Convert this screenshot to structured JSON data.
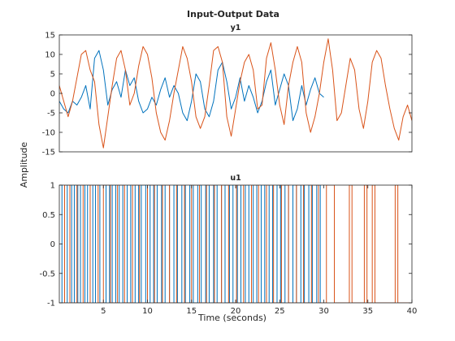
{
  "figure": {
    "title": "Input-Output Data",
    "ylabel": "Amplitude",
    "xlabel": "Time (seconds)"
  },
  "colors": {
    "series1": "#0072BD",
    "series2": "#D95319",
    "axes": "#262626",
    "background": "#ffffff"
  },
  "chart_data": [
    {
      "type": "line",
      "title": "y1",
      "xlim": [
        0,
        40
      ],
      "ylim": [
        -15,
        15
      ],
      "yticks": [
        -15,
        -10,
        -5,
        0,
        5,
        10,
        15
      ],
      "xticks": [],
      "grid": false,
      "series": [
        {
          "color": "#0072BD",
          "x": [
            0,
            0.5,
            1,
            1.5,
            2,
            2.5,
            3,
            3.5,
            4,
            4.5,
            5,
            5.5,
            6,
            6.5,
            7,
            7.5,
            8,
            8.5,
            9,
            9.5,
            10,
            10.5,
            11,
            11.5,
            12,
            12.5,
            13,
            13.5,
            14,
            14.5,
            15,
            15.5,
            16,
            16.5,
            17,
            17.5,
            18,
            18.5,
            19,
            19.5,
            20,
            20.5,
            21,
            21.5,
            22,
            22.5,
            23,
            23.5,
            24,
            24.5,
            25,
            25.5,
            26,
            26.5,
            27,
            27.5,
            28,
            28.5,
            29,
            29.5,
            30
          ],
          "y": [
            -2,
            -4,
            -5,
            -2,
            -3,
            -1,
            2,
            -4,
            9,
            11,
            6,
            -3,
            1,
            3,
            -1,
            6,
            2,
            4,
            -2,
            -5,
            -4,
            -1,
            -3,
            1,
            4,
            -1,
            2,
            0,
            -5,
            -7,
            -2,
            5,
            3,
            -4,
            -6,
            -2,
            6,
            8,
            3,
            -4,
            -1,
            4,
            -2,
            2,
            -1,
            -5,
            -2,
            3,
            6,
            -3,
            1,
            5,
            2,
            -7,
            -4,
            2,
            -3,
            1,
            4,
            0,
            -1
          ]
        },
        {
          "color": "#D95319",
          "x": [
            0,
            0.5,
            1,
            1.5,
            2,
            2.5,
            3,
            3.5,
            4,
            4.5,
            5,
            5.5,
            6,
            6.5,
            7,
            7.5,
            8,
            8.5,
            9,
            9.5,
            10,
            10.5,
            11,
            11.5,
            12,
            12.5,
            13,
            13.5,
            14,
            14.5,
            15,
            15.5,
            16,
            16.5,
            17,
            17.5,
            18,
            18.5,
            19,
            19.5,
            20,
            20.5,
            21,
            21.5,
            22,
            22.5,
            23,
            23.5,
            24,
            24.5,
            25,
            25.5,
            26,
            26.5,
            27,
            27.5,
            28,
            28.5,
            29,
            29.5,
            30,
            30.5,
            31,
            31.5,
            32,
            32.5,
            33,
            33.5,
            34,
            34.5,
            35,
            35.5,
            36,
            36.5,
            37,
            37.5,
            38,
            38.5,
            39,
            39.5,
            40
          ],
          "y": [
            2,
            -2,
            -6,
            -2,
            4,
            10,
            11,
            6,
            3,
            -8,
            -14,
            -6,
            2,
            9,
            11,
            6,
            -3,
            0,
            7,
            12,
            10,
            4,
            -5,
            -10,
            -12,
            -7,
            0,
            6,
            12,
            9,
            3,
            -6,
            -9,
            -6,
            2,
            11,
            12,
            8,
            -6,
            -11,
            -4,
            3,
            8,
            10,
            6,
            -4,
            -3,
            9,
            13,
            6,
            -3,
            -8,
            2,
            8,
            12,
            8,
            -5,
            -10,
            -6,
            0,
            8,
            14,
            6,
            -7,
            -5,
            2,
            9,
            6,
            -4,
            -9,
            -2,
            8,
            11,
            9,
            2,
            -4,
            -9,
            -12,
            -6,
            -3,
            -7
          ]
        }
      ]
    },
    {
      "type": "line",
      "title": "u1",
      "xlim": [
        0,
        40
      ],
      "ylim": [
        -1,
        1
      ],
      "yticks": [
        -1,
        -0.5,
        0,
        0.5,
        1
      ],
      "ytick_labels": [
        "-1",
        "-0.5",
        "0",
        "0.5",
        "1"
      ],
      "xticks": [
        5,
        10,
        15,
        20,
        25,
        30,
        35,
        40
      ],
      "grid": false,
      "series": [
        {
          "color": "#0072BD",
          "x": [
            0,
            0.3,
            0.9,
            1.4,
            1.7,
            2.1,
            2.4,
            2.9,
            3.2,
            3.8,
            4.1,
            4.6,
            5.3,
            5.7,
            6.0,
            6.4,
            6.8,
            7.2,
            7.7,
            8.1,
            8.6,
            9.0,
            9.3,
            9.8,
            10.3,
            10.7,
            11.1,
            11.6,
            12.0,
            12.5,
            13.0,
            13.4,
            13.9,
            14.3,
            14.8,
            15.2,
            15.7,
            16.1,
            16.6,
            17.0,
            17.5,
            17.9,
            18.4,
            18.8,
            19.3,
            19.7,
            20.2,
            20.6,
            21.1,
            21.5,
            22.0,
            22.4,
            22.9,
            23.3,
            23.8,
            24.2,
            24.7,
            25.1,
            25.6,
            26.0,
            26.5,
            26.9,
            27.4,
            27.8,
            28.3,
            28.7,
            29.2,
            29.6,
            30
          ],
          "y": [
            1,
            -1,
            1,
            -1,
            1,
            -1,
            1,
            -1,
            1,
            -1,
            1,
            -1,
            1,
            -1,
            1,
            -1,
            1,
            -1,
            1,
            -1,
            1,
            -1,
            1,
            -1,
            1,
            -1,
            1,
            -1,
            1,
            -1,
            1,
            -1,
            1,
            -1,
            1,
            -1,
            1,
            -1,
            1,
            -1,
            1,
            -1,
            1,
            -1,
            1,
            -1,
            1,
            -1,
            1,
            -1,
            1,
            -1,
            1,
            -1,
            1,
            -1,
            1,
            -1,
            1,
            -1,
            1,
            -1,
            1,
            -1,
            1,
            -1,
            1,
            -1,
            -1
          ]
        },
        {
          "color": "#D95319",
          "x": [
            0,
            0.6,
            1.2,
            2.0,
            2.7,
            3.5,
            4.4,
            5.0,
            5.8,
            6.6,
            7.4,
            8.3,
            9.1,
            10.0,
            10.8,
            11.7,
            12.5,
            13.3,
            14.2,
            15.0,
            15.9,
            16.7,
            17.6,
            18.4,
            19.2,
            20.1,
            20.9,
            21.8,
            22.6,
            23.5,
            24.3,
            25.2,
            26.0,
            26.9,
            27.7,
            28.6,
            29.4,
            30.3,
            31.2,
            32.9,
            33.2,
            34.6,
            34.9,
            35.5,
            35.8,
            38.1,
            38.4,
            40
          ],
          "y": [
            -1,
            1,
            -1,
            1,
            -1,
            1,
            -1,
            1,
            -1,
            1,
            -1,
            1,
            -1,
            1,
            -1,
            1,
            -1,
            1,
            -1,
            1,
            -1,
            1,
            -1,
            1,
            -1,
            1,
            -1,
            1,
            -1,
            1,
            -1,
            1,
            -1,
            1,
            -1,
            1,
            -1,
            1,
            -1,
            1,
            -1,
            1,
            -1,
            1,
            -1,
            1,
            -1,
            -1
          ]
        }
      ]
    }
  ]
}
